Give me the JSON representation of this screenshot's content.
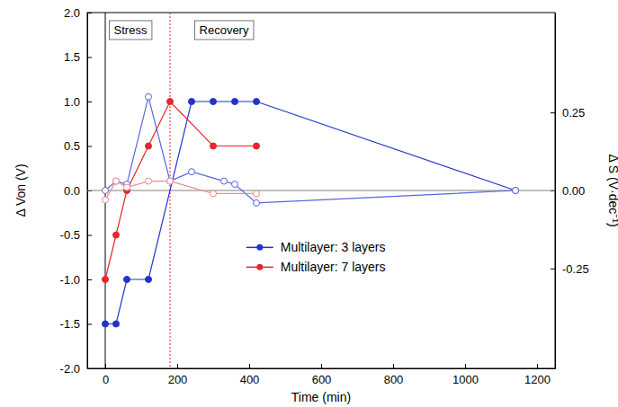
{
  "chart_data": {
    "type": "line",
    "x_label": "Time (min)",
    "y_label": "Δ Von (V)",
    "y2_label": "Δ S (V·dec⁻¹)",
    "xlim": [
      -50,
      1250
    ],
    "xticks": [
      0,
      200,
      400,
      600,
      800,
      1000,
      1200
    ],
    "ylim": [
      -2,
      2
    ],
    "yticks": [
      {
        "value": -2,
        "label": "-2.0"
      },
      -1.5,
      {
        "value": -1,
        "label": "-1.0"
      },
      -0.5,
      {
        "value": 0,
        "label": "0.0"
      },
      0.5,
      {
        "value": 1,
        "label": "1.0"
      },
      1.5,
      {
        "value": 2,
        "label": "2.0"
      }
    ],
    "y2lim": [
      -0.57,
      0.57
    ],
    "y2ticks": [
      -0.25,
      {
        "value": 0,
        "label": "0.00"
      },
      0.25
    ],
    "legend": "lower right",
    "annotations": [
      {
        "text": "Stress",
        "x": 70
      },
      {
        "text": "Recovery",
        "x": 330
      }
    ],
    "vlines": [
      {
        "x": 0,
        "color": "#000000",
        "line_style": "solid"
      },
      {
        "x": 180,
        "color": "#e8262b",
        "line_style": "dotted"
      }
    ],
    "hlines": [
      {
        "y": 0,
        "color": "#808080",
        "line_style": "solid"
      }
    ],
    "series": [
      {
        "name": "Multilayer: 3 layers",
        "color": "#2233cc",
        "marker": "circle",
        "x": [
          0,
          30,
          60,
          120,
          240,
          300,
          360,
          420,
          1140
        ],
        "values": [
          -1.5,
          -1.5,
          -1.0,
          -1.0,
          1.0,
          1.0,
          1.0,
          1.0,
          0.0
        ]
      },
      {
        "name": "Multilayer: 7 layers",
        "color": "#e8262b",
        "marker": "circle",
        "x": [
          0,
          30,
          60,
          120,
          180,
          300,
          420
        ],
        "values": [
          -1.0,
          -0.5,
          0.0,
          0.5,
          1.0,
          0.5,
          0.5
        ]
      },
      {
        "color": "#5566dd",
        "marker": "open_circle",
        "axis": "y2",
        "x": [
          0,
          30,
          60,
          120,
          180,
          240,
          330,
          360,
          420,
          1140
        ],
        "values": [
          0.0,
          0.03,
          0.02,
          0.3,
          0.03,
          0.06,
          0.03,
          0.02,
          -0.04,
          0.0
        ]
      },
      {
        "color": "#f08a8a",
        "marker": "open_circle",
        "axis": "y2",
        "x": [
          0,
          30,
          60,
          120,
          180,
          300,
          420
        ],
        "values": [
          -0.03,
          0.03,
          0.01,
          0.03,
          0.03,
          -0.01,
          -0.01
        ]
      }
    ]
  }
}
